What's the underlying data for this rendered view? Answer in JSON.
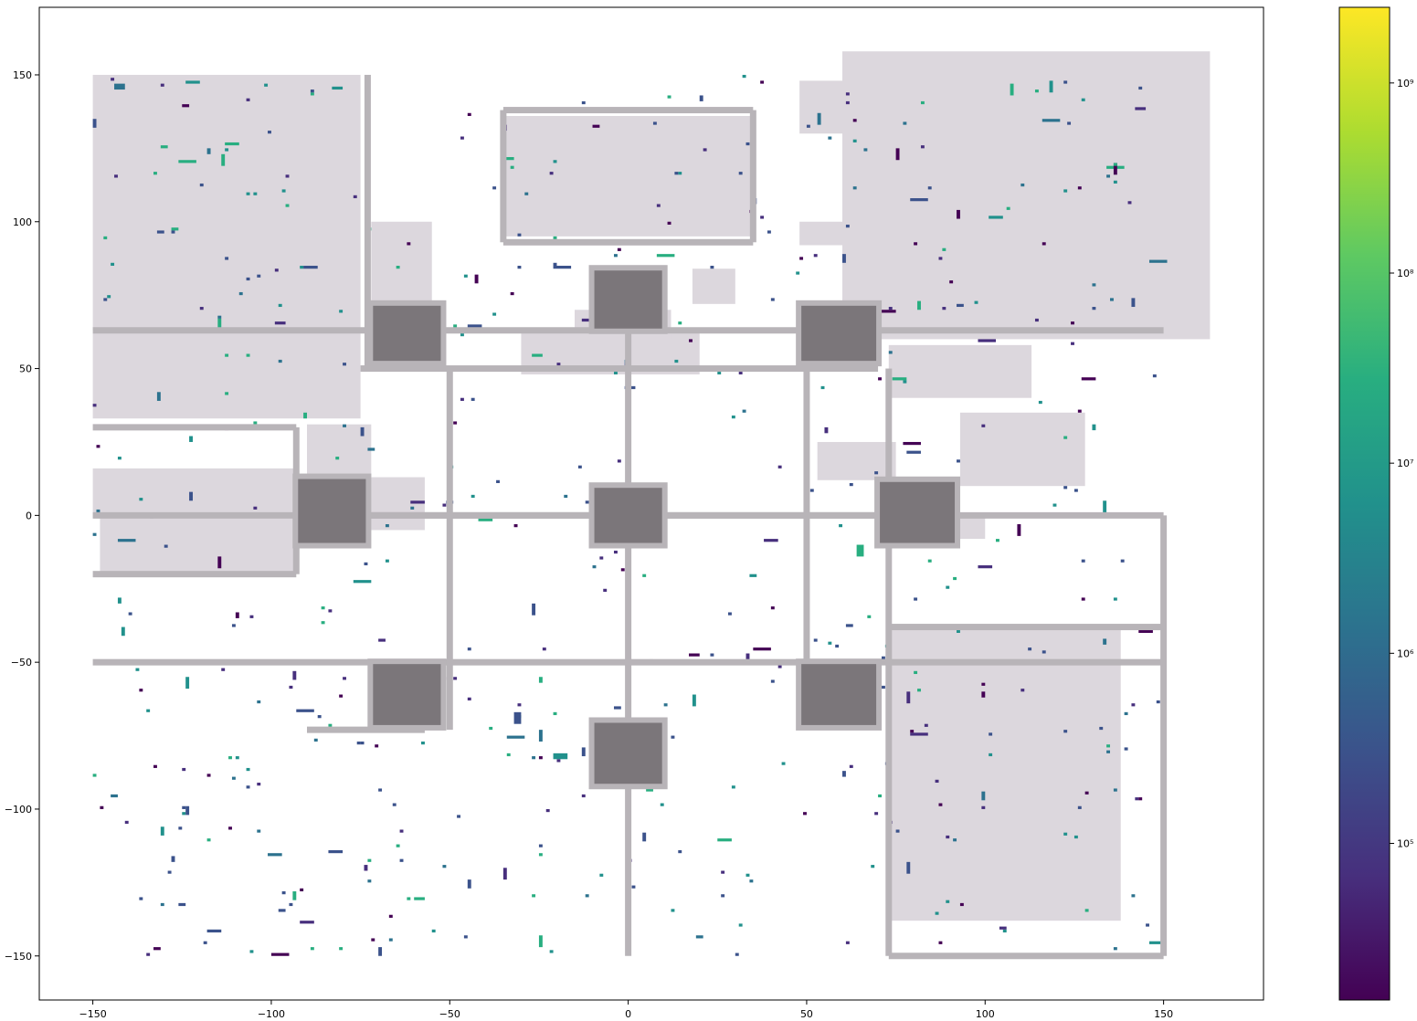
{
  "chart_data": {
    "type": "heatmap",
    "title": "",
    "xlabel": "",
    "ylabel": "",
    "xlim": [
      -165,
      178
    ],
    "ylim": [
      -165,
      173
    ],
    "x_ticks": [
      -150,
      -100,
      -50,
      0,
      50,
      100,
      150
    ],
    "y_ticks": [
      150,
      100,
      50,
      0,
      -50,
      -100,
      -150
    ],
    "x_tick_labels": [
      "−150",
      "−100",
      "−50",
      "0",
      "50",
      "100",
      "150"
    ],
    "y_tick_labels": [
      "150",
      "100",
      "50",
      "0",
      "−50",
      "−100",
      "−150"
    ],
    "colorbar": {
      "colormap": "viridis",
      "scale": "log",
      "range": [
        15000,
        2500000000
      ],
      "tick_values": [
        100000,
        1000000,
        10000000,
        100000000,
        1000000000
      ],
      "tick_labels": [
        "10⁵",
        "10⁶",
        "10⁷",
        "10⁸",
        "10⁹"
      ],
      "stops": [
        "#440154",
        "#472f7d",
        "#3b528b",
        "#2c728e",
        "#21918c",
        "#28ae80",
        "#5ec962",
        "#addc30",
        "#fde725"
      ]
    },
    "colors": {
      "district": "#dcd7dd",
      "road": "#b8b4b8",
      "plaza": "#7b767a"
    },
    "districts": [
      [
        -150,
        150,
        -75,
        63
      ],
      [
        -150,
        62,
        -75,
        33
      ],
      [
        -150,
        16,
        -93,
        -1
      ],
      [
        -148,
        -1,
        -93,
        -19
      ],
      [
        -72,
        100,
        -55,
        72
      ],
      [
        -90,
        31,
        -72,
        13
      ],
      [
        -72,
        13,
        -57,
        -5
      ],
      [
        -30,
        62,
        20,
        48
      ],
      [
        -35,
        136,
        35,
        95
      ],
      [
        -15,
        70,
        12,
        60
      ],
      [
        18,
        84,
        30,
        72
      ],
      [
        48,
        148,
        60,
        130
      ],
      [
        48,
        100,
        60,
        92
      ],
      [
        60,
        158,
        163,
        60
      ],
      [
        73,
        58,
        113,
        40
      ],
      [
        53,
        25,
        75,
        12
      ],
      [
        93,
        35,
        128,
        10
      ],
      [
        75,
        0,
        100,
        -8
      ],
      [
        73,
        -38,
        138,
        -138
      ]
    ],
    "roads_h": [
      [
        -150,
        150,
        63
      ],
      [
        -75,
        70,
        50
      ],
      [
        -150,
        150,
        0
      ],
      [
        -150,
        150,
        -50
      ],
      [
        -72,
        70,
        0
      ],
      [
        -90,
        -57,
        -73
      ],
      [
        73,
        150,
        -38
      ],
      [
        73,
        150,
        -150
      ],
      [
        -150,
        -93,
        30
      ],
      [
        -150,
        -93,
        -20
      ],
      [
        -35,
        35,
        138
      ],
      [
        -35,
        35,
        93
      ]
    ],
    "roads_v": [
      [
        0,
        -150,
        63
      ],
      [
        50,
        -73,
        63
      ],
      [
        -50,
        -73,
        50
      ],
      [
        -73,
        50,
        150
      ],
      [
        73,
        -150,
        50
      ],
      [
        150,
        -150,
        0
      ],
      [
        -93,
        -20,
        30
      ],
      [
        -35,
        93,
        138
      ],
      [
        35,
        93,
        138
      ]
    ],
    "plazas": [
      [
        -72,
        72,
        -52,
        52
      ],
      [
        -10,
        84,
        10,
        63
      ],
      [
        48,
        72,
        70,
        52
      ],
      [
        -93,
        13,
        -73,
        -10
      ],
      [
        -10,
        10,
        10,
        -10
      ],
      [
        70,
        12,
        92,
        -10
      ],
      [
        -72,
        -50,
        -52,
        -72
      ],
      [
        -10,
        -70,
        10,
        -92
      ],
      [
        48,
        -50,
        70,
        -72
      ]
    ]
  }
}
